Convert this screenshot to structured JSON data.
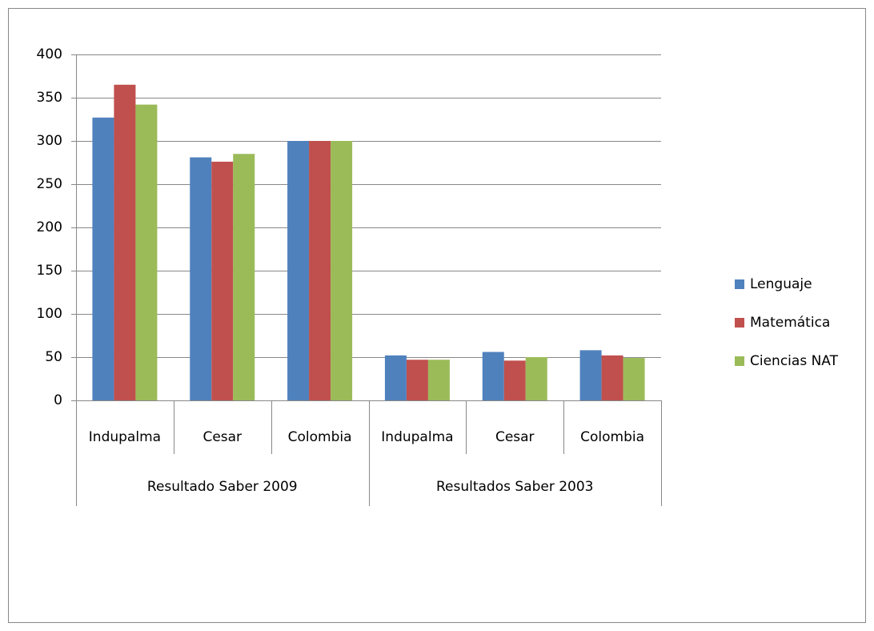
{
  "chart_data": {
    "type": "bar",
    "groups": [
      {
        "name": "Resultado Saber 2009",
        "categories": [
          "Indupalma",
          "Cesar",
          "Colombia"
        ]
      },
      {
        "name": "Resultados Saber 2003",
        "categories": [
          "Indupalma",
          "Cesar",
          "Colombia"
        ]
      }
    ],
    "series": [
      {
        "name": "Lenguaje",
        "color": "#4f81bd",
        "values": [
          327,
          281,
          300,
          52,
          56,
          58
        ]
      },
      {
        "name": "Matemática",
        "color": "#c0504d",
        "values": [
          365,
          276,
          300,
          47,
          46,
          52
        ]
      },
      {
        "name": "Ciencias NAT",
        "color": "#9bbb59",
        "values": [
          342,
          285,
          300,
          47,
          50,
          49
        ]
      }
    ],
    "ylim": [
      0,
      400
    ],
    "yticks": [
      0,
      50,
      100,
      150,
      200,
      250,
      300,
      350,
      400
    ],
    "grid": true,
    "legend": "right"
  }
}
